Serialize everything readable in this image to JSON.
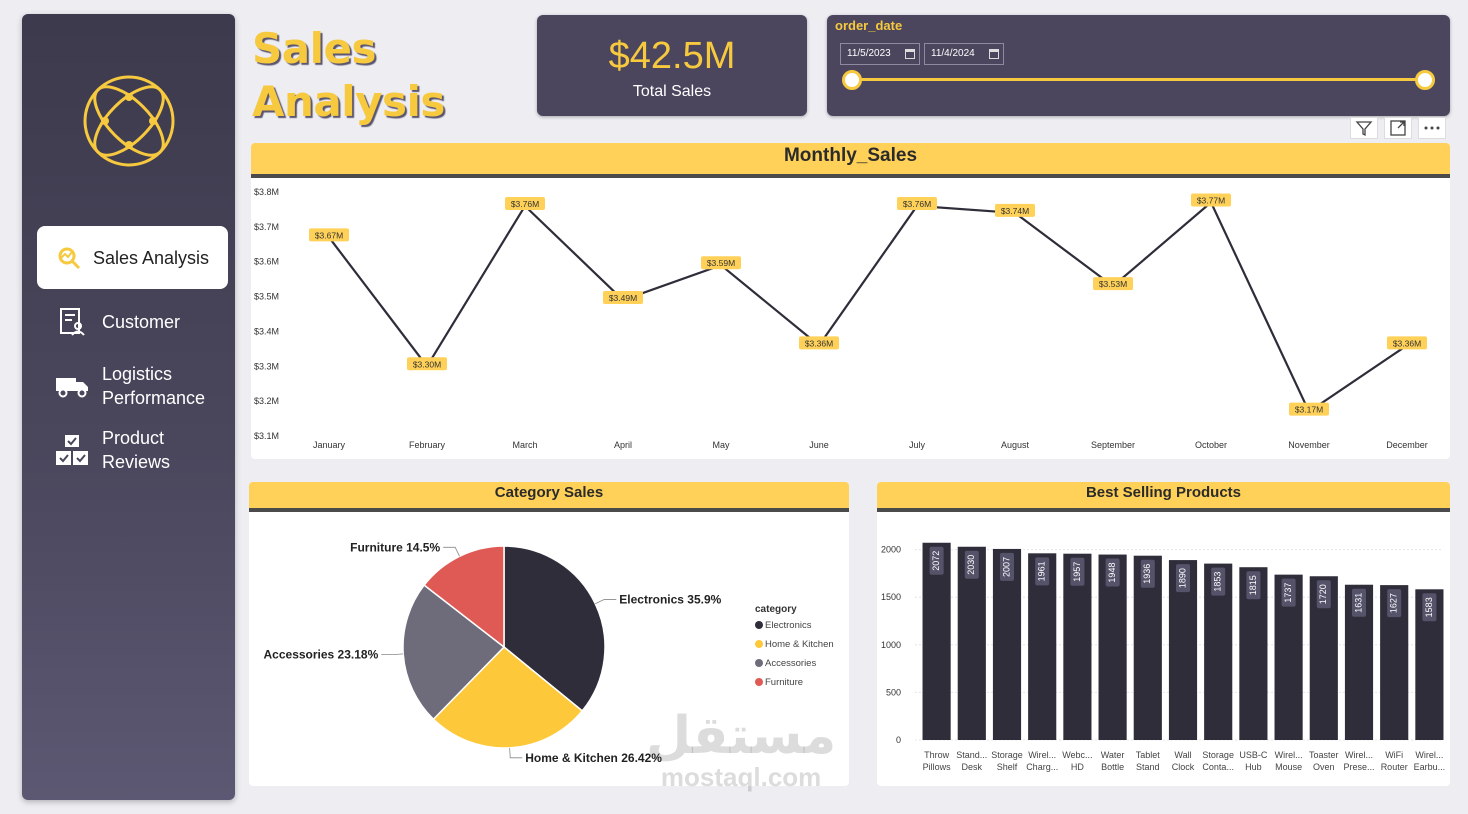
{
  "title": "Sales\nAnalysis",
  "sidebar": {
    "items": [
      {
        "label": "Sales Analysis",
        "icon": "sales-analysis-icon"
      },
      {
        "label": "Customer",
        "icon": "customer-icon"
      },
      {
        "label": "Logistics\nPerformance",
        "icon": "truck-icon"
      },
      {
        "label": "Product\nReviews",
        "icon": "boxes-icon"
      }
    ]
  },
  "kpi": {
    "value": "$42.5M",
    "label": "Total Sales"
  },
  "slicer": {
    "title": "order_date",
    "start": "11/5/2023",
    "end": "11/4/2024"
  },
  "colors": {
    "accent": "#f7c93e",
    "panel": "#4b465d",
    "header": "#ffd158",
    "dark": "#2f2d3a",
    "gray": "#6e6b7b",
    "red": "#e05a55"
  },
  "watermark": {
    "arabic": "مستقل",
    "latin": "mostaql.com"
  },
  "chart_data": [
    {
      "type": "line",
      "title": "Monthly_Sales",
      "categories": [
        "January",
        "February",
        "March",
        "April",
        "May",
        "June",
        "July",
        "August",
        "September",
        "October",
        "November",
        "December"
      ],
      "values": [
        3.67,
        3.3,
        3.76,
        3.49,
        3.59,
        3.36,
        3.76,
        3.74,
        3.53,
        3.77,
        3.17,
        3.36
      ],
      "data_labels": [
        "$3.67M",
        "$3.30M",
        "$3.76M",
        "$3.49M",
        "$3.59M",
        "$3.36M",
        "$3.76M",
        "$3.74M",
        "$3.53M",
        "$3.77M",
        "$3.17M",
        "$3.36M"
      ],
      "y_ticks": [
        "$3.1M",
        "$3.2M",
        "$3.3M",
        "$3.4M",
        "$3.5M",
        "$3.6M",
        "$3.7M",
        "$3.8M"
      ],
      "ylim": [
        3.1,
        3.8
      ],
      "grid": false
    },
    {
      "type": "pie",
      "title": "Category Sales",
      "legend_title": "category",
      "legend_position": "right",
      "slices": [
        {
          "name": "Electronics",
          "value": 35.9,
          "label": "Electronics 35.9%",
          "color": "#2f2d3a"
        },
        {
          "name": "Home & Kitchen",
          "value": 26.42,
          "label": "Home & Kitchen 26.42%",
          "color": "#fdc93a"
        },
        {
          "name": "Accessories",
          "value": 23.18,
          "label": "Accessories 23.18%",
          "color": "#6e6b7b"
        },
        {
          "name": "Furniture",
          "value": 14.5,
          "label": "Furniture 14.5%",
          "color": "#e05a55"
        }
      ]
    },
    {
      "type": "bar",
      "title": "Best Selling Products",
      "categories": [
        [
          "Throw",
          "Pillows"
        ],
        [
          "Stand...",
          "Desk"
        ],
        [
          "Storage",
          "Shelf"
        ],
        [
          "Wirel...",
          "Charg..."
        ],
        [
          "Webc...",
          "HD"
        ],
        [
          "Water",
          "Bottle"
        ],
        [
          "Tablet",
          "Stand"
        ],
        [
          "Wall",
          "Clock"
        ],
        [
          "Storage",
          "Conta..."
        ],
        [
          "USB-C",
          "Hub"
        ],
        [
          "Wirel...",
          "Mouse"
        ],
        [
          "Toaster",
          "Oven"
        ],
        [
          "Wirel...",
          "Prese..."
        ],
        [
          "WiFi",
          "Router"
        ],
        [
          "Wirel...",
          "Earbu..."
        ]
      ],
      "values": [
        2072,
        2030,
        2007,
        1961,
        1957,
        1948,
        1936,
        1890,
        1853,
        1815,
        1737,
        1720,
        1631,
        1627,
        1583
      ],
      "y_ticks": [
        0,
        500,
        1000,
        1500,
        2000
      ],
      "ylim": [
        0,
        2200
      ],
      "grid": true
    }
  ]
}
